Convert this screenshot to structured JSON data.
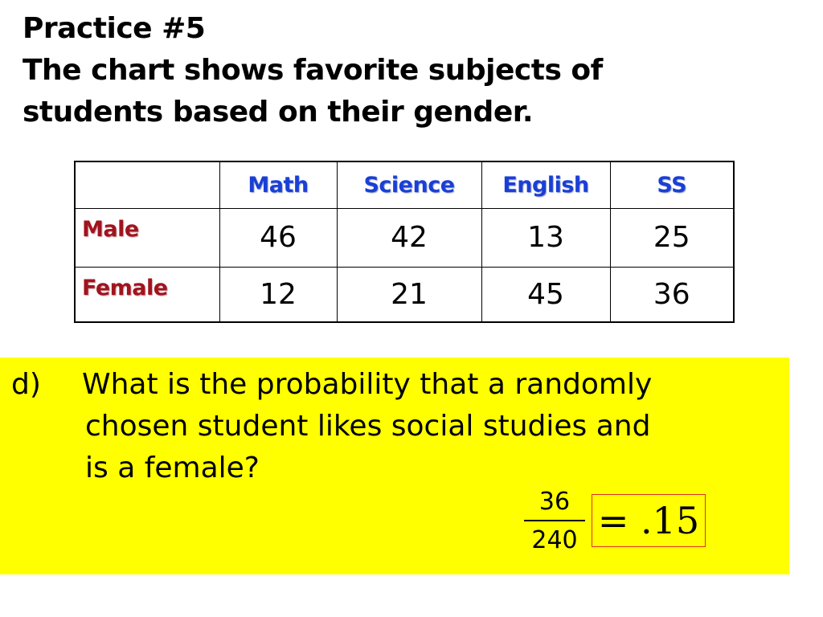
{
  "title": {
    "line1": "Practice #5",
    "line2": "The chart shows favorite subjects of",
    "line3": "students based on their gender."
  },
  "table": {
    "columns": [
      "Math",
      "Science",
      "English",
      "SS"
    ],
    "rows": [
      {
        "label": "Male",
        "values": [
          "46",
          "42",
          "13",
          "25"
        ]
      },
      {
        "label": "Female",
        "values": [
          "12",
          "21",
          "45",
          "36"
        ]
      }
    ]
  },
  "question": {
    "letter": "d)",
    "line1": "What is the probability that a randomly",
    "line2": "chosen student likes social studies and",
    "line3": "is a female?"
  },
  "answer": {
    "numerator": "36",
    "denominator": "240",
    "result": "= .15"
  },
  "colors": {
    "header_text": "#1a3fd6",
    "row_label_text": "#a0141e",
    "question_background": "#ffff00",
    "answer_border": "#e03030"
  }
}
